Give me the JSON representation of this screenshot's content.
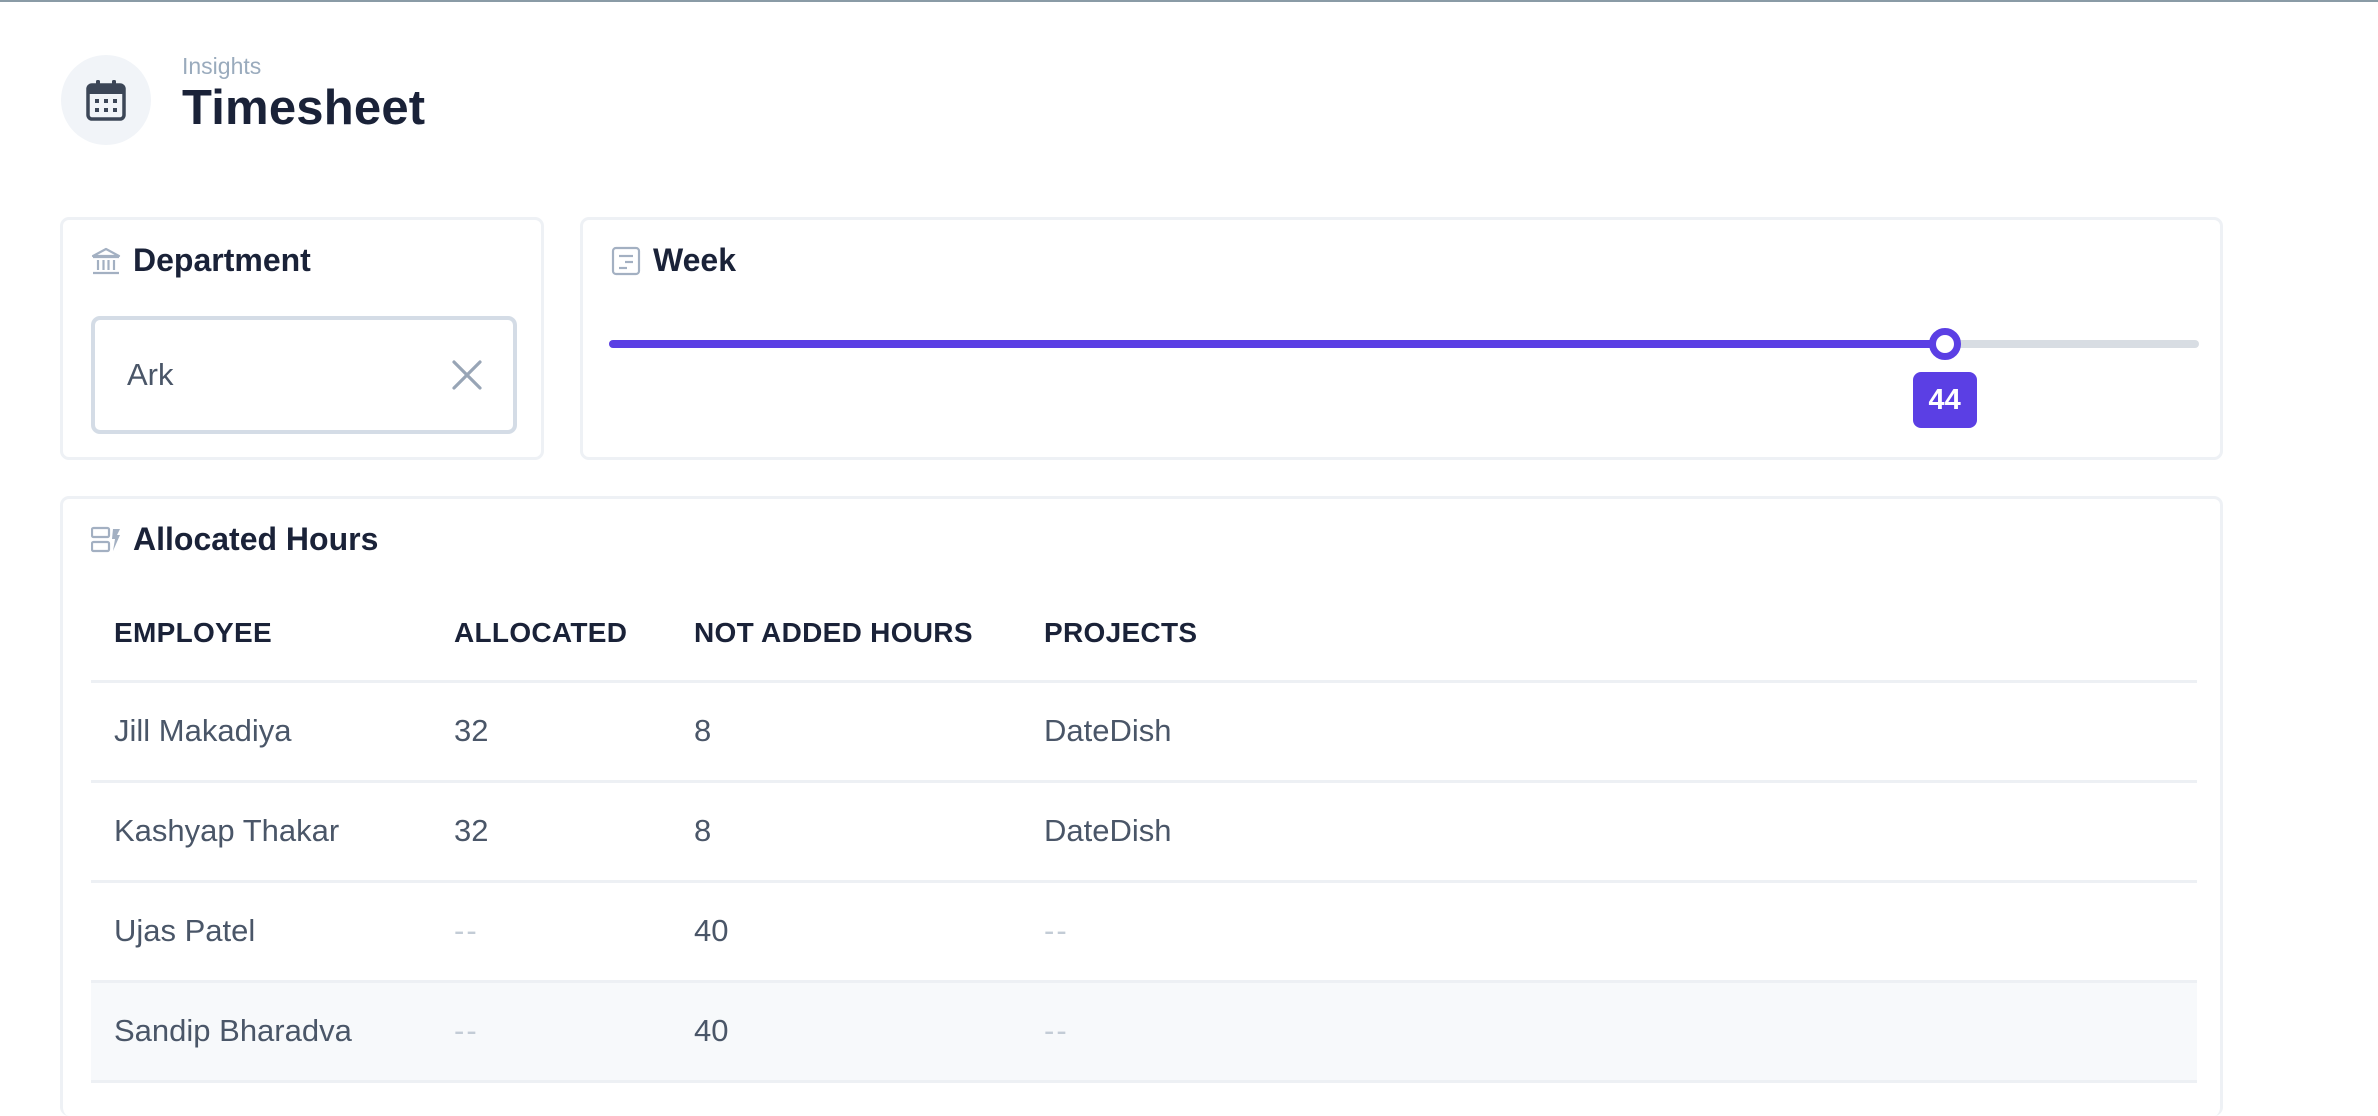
{
  "header": {
    "breadcrumb": "Insights",
    "title": "Timesheet",
    "icon": "calendar-icon"
  },
  "department": {
    "label": "Department",
    "icon": "building-icon",
    "selected": "Ark",
    "clear_icon": "close-icon"
  },
  "week": {
    "label": "Week",
    "icon": "calendar-week-icon",
    "value": "44",
    "slider_fraction": 0.84
  },
  "allocated": {
    "label": "Allocated Hours",
    "icon": "allocation-icon",
    "columns": [
      "EMPLOYEE",
      "ALLOCATED",
      "NOT ADDED HOURS",
      "PROJECTS"
    ],
    "rows": [
      [
        "Jill Makadiya",
        "32",
        "8",
        "DateDish"
      ],
      [
        "Kashyap Thakar",
        "32",
        "8",
        "DateDish"
      ],
      [
        "Ujas Patel",
        "--",
        "40",
        "--"
      ],
      [
        "Sandip Bharadva",
        "--",
        "40",
        "--"
      ]
    ]
  },
  "colors": {
    "accent": "#5b3fe4",
    "text": "#1a2238",
    "muted": "#4a5668"
  }
}
